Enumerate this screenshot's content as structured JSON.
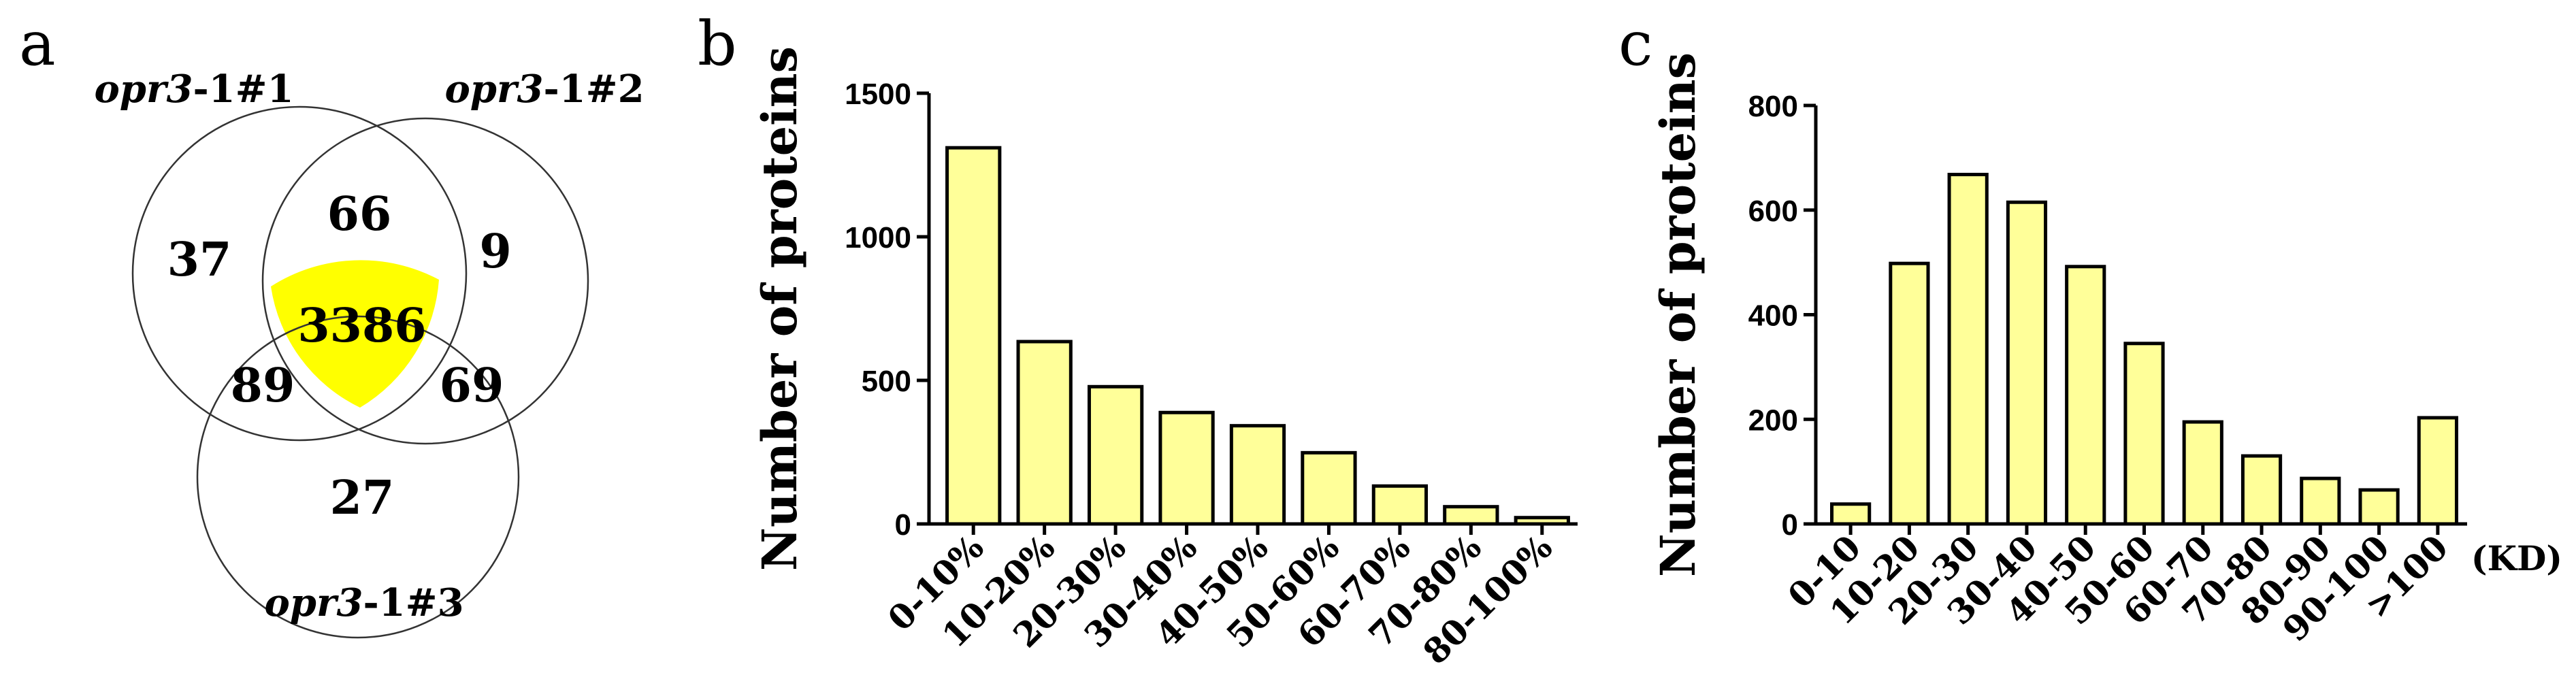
{
  "colors": {
    "bar_fill": "#ffff99",
    "bar_stroke": "#000000",
    "center_fill": "#ffff00",
    "circle_stroke": "#333333",
    "axis": "#000000"
  },
  "panels": {
    "a": {
      "letter": "a",
      "set_labels": [
        {
          "italic": "opr3",
          "rest": "-1#1"
        },
        {
          "italic": "opr3",
          "rest": "-1#2"
        },
        {
          "italic": "opr3",
          "rest": "-1#3"
        }
      ],
      "regions": {
        "only_1": "37",
        "only_1_2": "66",
        "only_2": "9",
        "all_three": "3386",
        "only_1_3": "89",
        "only_2_3": "69",
        "only_3": "27"
      }
    },
    "b": {
      "letter": "b"
    },
    "c": {
      "letter": "c",
      "unit": "(KD)"
    }
  },
  "chart_data": [
    {
      "type": "venn",
      "sets": [
        "opr3-1#1",
        "opr3-1#2",
        "opr3-1#3"
      ],
      "regions": {
        "1": 37,
        "1&2": 66,
        "2": 9,
        "1&2&3": 3386,
        "1&3": 89,
        "2&3": 69,
        "3": 27
      },
      "highlight": "1&2&3"
    },
    {
      "type": "bar",
      "ylabel": "Number of proteins",
      "xlabel": "",
      "ylim": [
        0,
        1500
      ],
      "yticks": [
        0,
        500,
        1000,
        1500
      ],
      "categories": [
        "0-10%",
        "10-20%",
        "20-30%",
        "30-40%",
        "40-50%",
        "50-60%",
        "60-70%",
        "70-80%",
        "80-100%"
      ],
      "values": [
        1310,
        635,
        478,
        388,
        342,
        248,
        132,
        60,
        22
      ]
    },
    {
      "type": "bar",
      "ylabel": "Number of proteins",
      "xlabel": "(KD)",
      "ylim": [
        0,
        800
      ],
      "yticks": [
        0,
        200,
        400,
        600,
        800
      ],
      "categories": [
        "0-10",
        "10-20",
        "20-30",
        "30-40",
        "40-50",
        "50-60",
        "60-70",
        "70-80",
        "80-90",
        "90-100",
        ">100"
      ],
      "values": [
        38,
        498,
        668,
        615,
        492,
        345,
        195,
        130,
        87,
        65,
        203
      ]
    }
  ]
}
